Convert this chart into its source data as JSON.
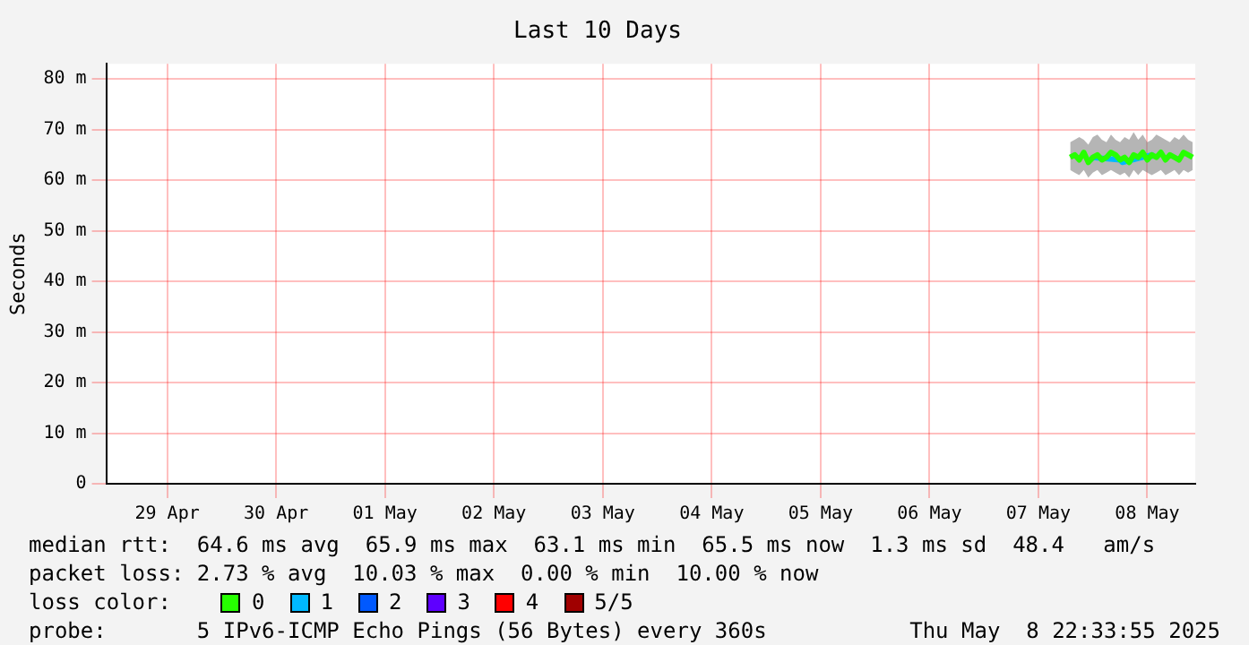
{
  "chart_data": {
    "type": "line",
    "title": "Last 10 Days",
    "ylabel": "Seconds",
    "xlim": [
      "2025-04-28T22:34",
      "2025-05-08T22:34"
    ],
    "xticks": [
      {
        "value": "2025-04-29T12:00",
        "label": "29 Apr"
      },
      {
        "value": "2025-04-30T12:00",
        "label": "30 Apr"
      },
      {
        "value": "2025-05-01T12:00",
        "label": "01 May"
      },
      {
        "value": "2025-05-02T12:00",
        "label": "02 May"
      },
      {
        "value": "2025-05-03T12:00",
        "label": "03 May"
      },
      {
        "value": "2025-05-04T12:00",
        "label": "04 May"
      },
      {
        "value": "2025-05-05T12:00",
        "label": "05 May"
      },
      {
        "value": "2025-05-06T12:00",
        "label": "06 May"
      },
      {
        "value": "2025-05-07T12:00",
        "label": "07 May"
      },
      {
        "value": "2025-05-08T12:00",
        "label": "08 May"
      }
    ],
    "ylim": [
      0,
      83
    ],
    "yticks": [
      0,
      {
        "value": 10,
        "label": "10 m"
      },
      {
        "value": 20,
        "label": "20 m"
      },
      {
        "value": 30,
        "label": "30 m"
      },
      {
        "value": 40,
        "label": "40 m"
      },
      {
        "value": 50,
        "label": "50 m"
      },
      {
        "value": 60,
        "label": "60 m"
      },
      {
        "value": 70,
        "label": "70 m"
      },
      {
        "value": 80,
        "label": "80 m"
      }
    ],
    "grid": true,
    "legend": "bottom",
    "marker": "none",
    "series": [
      {
        "name": "0",
        "color": "#26ff00",
        "x": [
          "2025-05-07T19:00",
          "2025-05-07T20:00",
          "2025-05-07T21:00",
          "2025-05-07T22:00",
          "2025-05-07T23:00",
          "2025-05-08T00:00",
          "2025-05-08T01:00",
          "2025-05-08T02:00",
          "2025-05-08T03:00",
          "2025-05-08T04:00",
          "2025-05-08T05:00",
          "2025-05-08T06:00",
          "2025-05-08T07:00",
          "2025-05-08T08:00",
          "2025-05-08T09:00",
          "2025-05-08T10:00",
          "2025-05-08T11:00",
          "2025-05-08T12:00",
          "2025-05-08T13:00",
          "2025-05-08T14:00",
          "2025-05-08T15:00",
          "2025-05-08T16:00",
          "2025-05-08T17:00",
          "2025-05-08T18:00",
          "2025-05-08T19:00",
          "2025-05-08T20:00",
          "2025-05-08T21:00",
          "2025-05-08T22:00"
        ],
        "values": [
          64.5,
          65,
          64,
          65.5,
          63.5,
          64.5,
          65,
          64,
          64.5,
          65.5,
          65,
          64,
          64.5,
          63.5,
          65,
          64.5,
          65.5,
          64,
          65,
          64.5,
          65.5,
          64,
          65,
          64.5,
          64,
          65.5,
          65,
          64.5
        ],
        "lower": [
          62,
          61.5,
          61,
          62,
          60.5,
          61.5,
          62,
          61,
          61.5,
          62,
          61.5,
          61,
          61.5,
          60.5,
          62,
          61,
          62,
          61.5,
          61,
          61.5,
          62,
          61,
          61.5,
          62,
          61,
          62,
          61.5,
          62
        ],
        "upper": [
          67.5,
          68,
          68.5,
          68,
          67,
          68.5,
          69,
          68,
          67.5,
          69,
          68,
          67.5,
          68.5,
          68,
          69.5,
          68,
          69,
          67.5,
          68,
          69,
          68.5,
          68,
          67.5,
          68.5,
          68,
          69,
          68,
          67.5
        ]
      },
      {
        "name": "1",
        "color": "#00b8ff",
        "x": [
          "2025-05-07T23:30",
          "2025-05-08T00:00",
          "2025-05-08T06:00",
          "2025-05-08T06:30",
          "2025-05-08T13:00",
          "2025-05-08T13:30"
        ],
        "values": [
          64,
          64.5,
          64,
          63.5,
          65,
          64.5
        ]
      },
      {
        "name": "2",
        "color": "#0059ff"
      },
      {
        "name": "3",
        "color": "#5e00ff"
      },
      {
        "name": "4",
        "color": "#ff0000"
      },
      {
        "name": "5/5",
        "color": "#a00000"
      }
    ],
    "annotations": [
      "median rtt:  64.6 ms avg  65.9 ms max  63.1 ms min  65.5 ms now  1.3 ms sd  48.4   am/s",
      "packet loss: 2.73 % avg  10.03 % max  0.00 % min  10.00 % now",
      "loss color:",
      "probe:       5 IPv6-ICMP Echo Pings (56 Bytes) every 360s",
      "Thu May  8 22:33:55 2025"
    ]
  }
}
